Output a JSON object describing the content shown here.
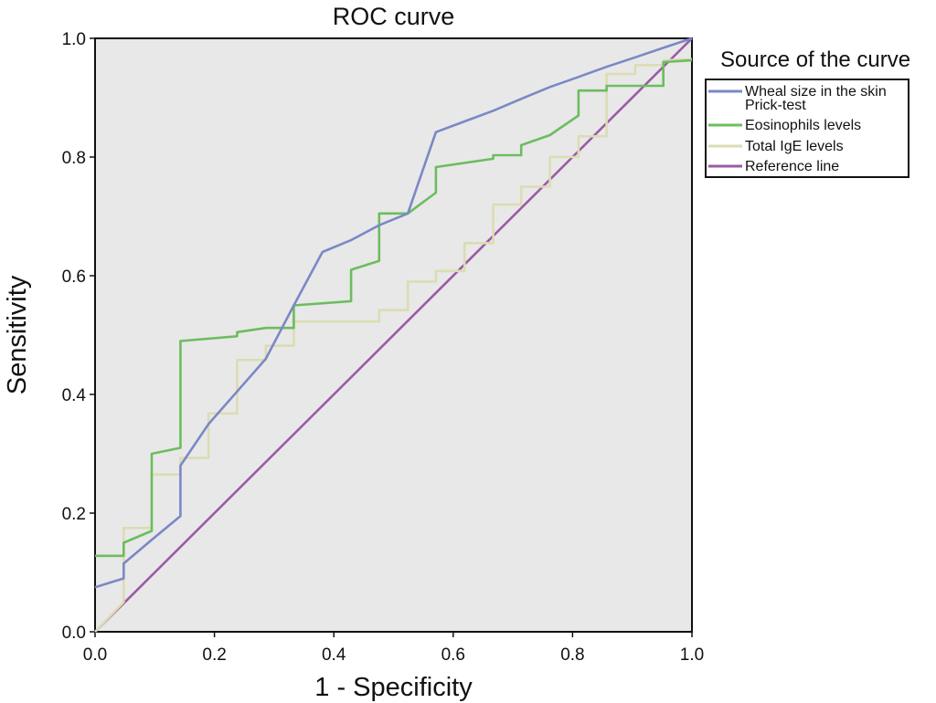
{
  "chart_data": {
    "type": "line",
    "title": "ROC curve",
    "xlabel": "1 - Specificity",
    "ylabel": "Sensitivity",
    "xlim": [
      0,
      1
    ],
    "ylim": [
      0,
      1
    ],
    "xticks": [
      "0.0",
      "0.2",
      "0.4",
      "0.6",
      "0.8",
      "1.0"
    ],
    "yticks": [
      "0.0",
      "0.2",
      "0.4",
      "0.6",
      "0.8",
      "1.0"
    ],
    "legend": {
      "title": "Source of the curve",
      "placement": "right"
    },
    "series": [
      {
        "name": "Wheal size in the skin Prick-test",
        "label_lines": [
          "Wheal size in the skin",
          "Prick-test"
        ],
        "color": "#7b88c6",
        "x": [
          0.0,
          0.048,
          0.048,
          0.095,
          0.143,
          0.143,
          0.19,
          0.238,
          0.286,
          0.333,
          0.381,
          0.429,
          0.476,
          0.524,
          0.571,
          0.619,
          0.667,
          0.714,
          0.762,
          0.81,
          0.857,
          0.905,
          0.952,
          1.0
        ],
        "y": [
          0.075,
          0.09,
          0.115,
          0.155,
          0.195,
          0.28,
          0.35,
          0.405,
          0.46,
          0.55,
          0.64,
          0.66,
          0.685,
          0.705,
          0.842,
          0.86,
          0.878,
          0.898,
          0.918,
          0.935,
          0.952,
          0.968,
          0.984,
          1.0
        ]
      },
      {
        "name": "Eosinophils levels",
        "label_lines": [
          "Eosinophils levels"
        ],
        "color": "#6cbd5e",
        "x": [
          0.0,
          0.048,
          0.048,
          0.095,
          0.095,
          0.143,
          0.143,
          0.238,
          0.238,
          0.286,
          0.333,
          0.333,
          0.429,
          0.429,
          0.476,
          0.476,
          0.524,
          0.571,
          0.571,
          0.667,
          0.667,
          0.714,
          0.714,
          0.762,
          0.81,
          0.81,
          0.857,
          0.857,
          0.905,
          0.952,
          0.952,
          1.0
        ],
        "y": [
          0.128,
          0.128,
          0.15,
          0.17,
          0.3,
          0.31,
          0.49,
          0.498,
          0.505,
          0.512,
          0.512,
          0.55,
          0.557,
          0.61,
          0.625,
          0.705,
          0.705,
          0.74,
          0.783,
          0.797,
          0.803,
          0.803,
          0.82,
          0.837,
          0.87,
          0.912,
          0.912,
          0.92,
          0.92,
          0.92,
          0.96,
          0.963
        ]
      },
      {
        "name": "Total IgE levels",
        "label_lines": [
          "Total IgE levels"
        ],
        "color": "#dcdcb4",
        "x": [
          0.0,
          0.048,
          0.048,
          0.095,
          0.095,
          0.143,
          0.143,
          0.19,
          0.19,
          0.238,
          0.238,
          0.286,
          0.286,
          0.333,
          0.333,
          0.381,
          0.476,
          0.476,
          0.524,
          0.524,
          0.571,
          0.571,
          0.619,
          0.619,
          0.667,
          0.667,
          0.714,
          0.714,
          0.762,
          0.762,
          0.81,
          0.81,
          0.857,
          0.857,
          0.905,
          0.905,
          0.952,
          0.952,
          1.0
        ],
        "y": [
          0.0,
          0.05,
          0.175,
          0.175,
          0.265,
          0.265,
          0.293,
          0.293,
          0.368,
          0.368,
          0.458,
          0.458,
          0.482,
          0.482,
          0.523,
          0.523,
          0.523,
          0.542,
          0.542,
          0.59,
          0.59,
          0.608,
          0.608,
          0.655,
          0.655,
          0.72,
          0.72,
          0.75,
          0.75,
          0.8,
          0.8,
          0.835,
          0.835,
          0.94,
          0.94,
          0.955,
          0.955,
          0.963,
          0.965
        ]
      },
      {
        "name": "Reference line",
        "label_lines": [
          "Reference line"
        ],
        "color": "#9a5ba6",
        "x": [
          0,
          1
        ],
        "y": [
          0,
          1
        ]
      }
    ]
  }
}
